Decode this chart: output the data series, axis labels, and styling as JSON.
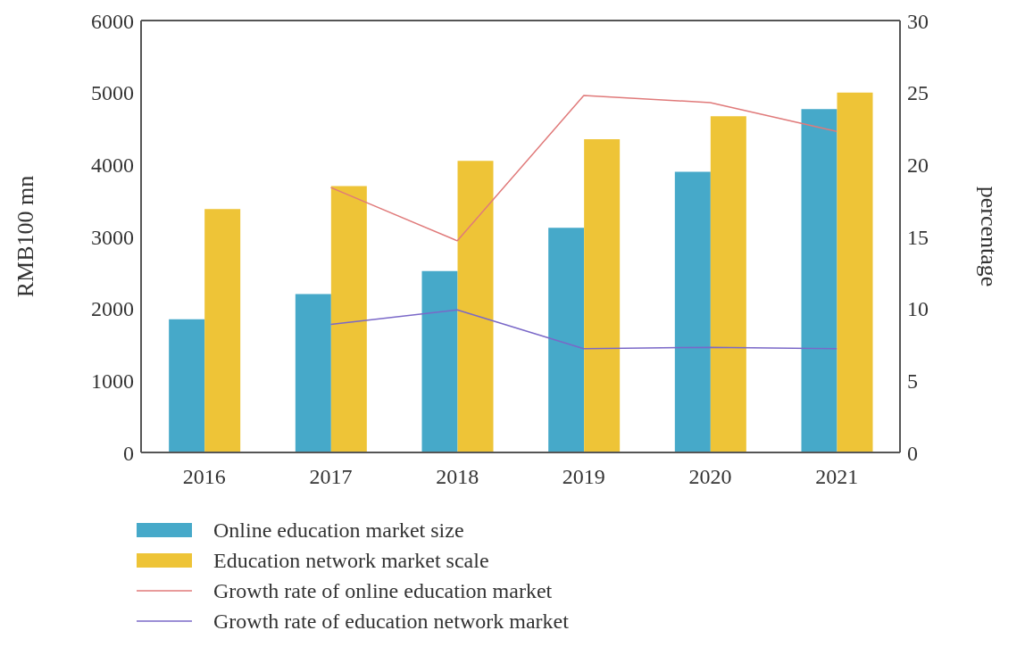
{
  "chart_data": {
    "type": "bar",
    "categories": [
      "2016",
      "2017",
      "2018",
      "2019",
      "2020",
      "2021"
    ],
    "ylabel": "RMB100 mn",
    "y2label": "percentage",
    "ylim": [
      0,
      6000
    ],
    "yticks": [
      0,
      1000,
      2000,
      3000,
      4000,
      5000,
      6000
    ],
    "y2lim": [
      0,
      30
    ],
    "y2ticks": [
      0,
      5,
      10,
      15,
      20,
      25,
      30
    ],
    "grid": false,
    "legend": "bottom",
    "series": [
      {
        "name": "Online education market size",
        "color": "#46a9c9",
        "values": [
          1850,
          2200,
          2520,
          3120,
          3900,
          4770
        ]
      },
      {
        "name": "Education network market scale",
        "color": "#eec437",
        "values": [
          3380,
          3700,
          4050,
          4350,
          4670,
          5000
        ]
      },
      {
        "name": "Growth rate of online education market",
        "type": "line",
        "axis": "y2",
        "color": "#e07a7a",
        "values": [
          null,
          18.4,
          14.7,
          24.8,
          24.3,
          22.3
        ]
      },
      {
        "name": "Growth rate of education network market",
        "type": "line",
        "axis": "y2",
        "color": "#7a68c8",
        "values": [
          null,
          8.9,
          9.9,
          7.2,
          7.3,
          7.2
        ]
      }
    ]
  }
}
